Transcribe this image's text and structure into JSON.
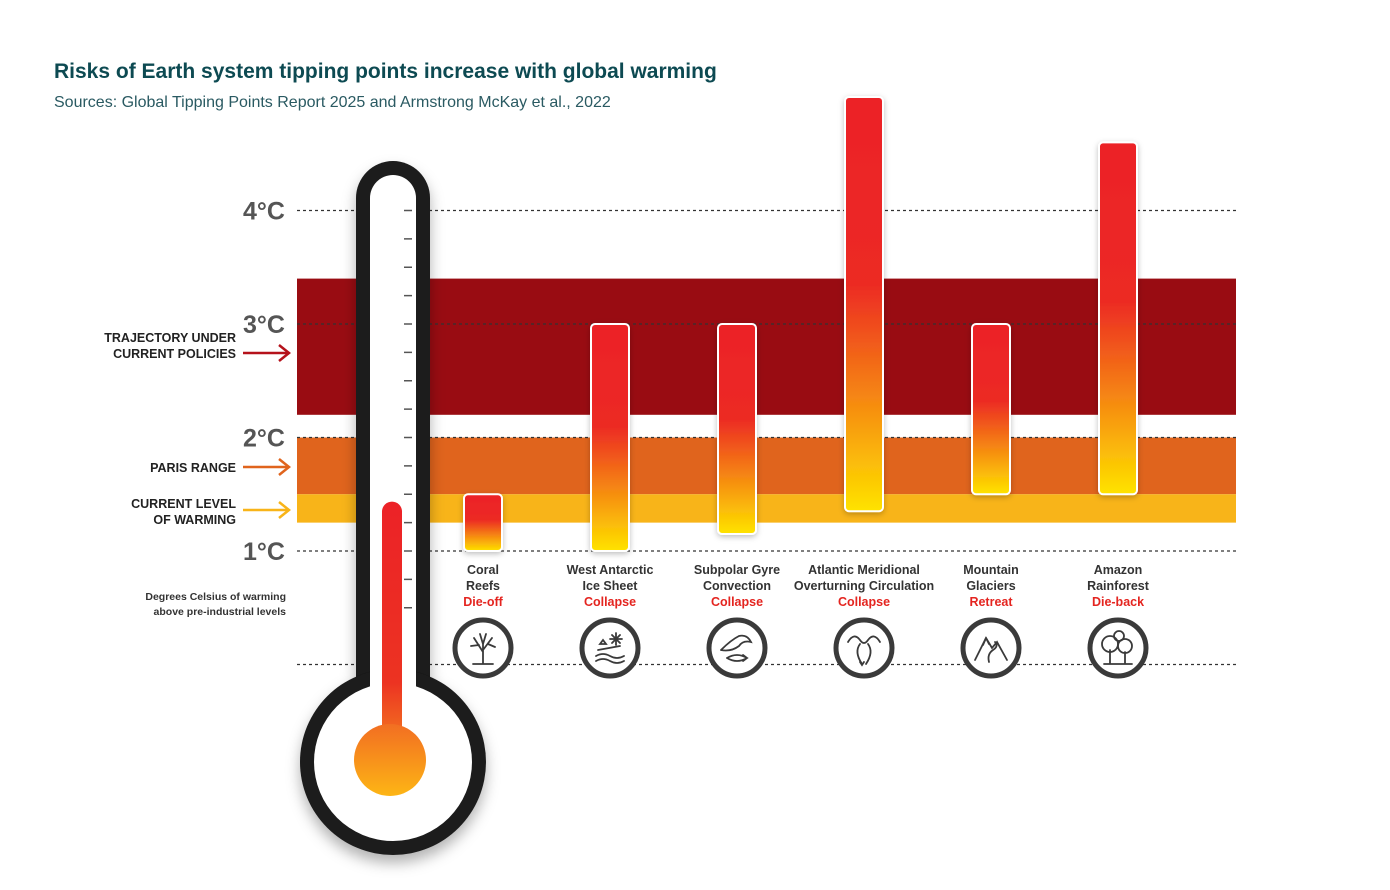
{
  "header": {
    "title": "Risks of Earth system tipping points increase with global warming",
    "subtitle": "Sources: Global Tipping Points Report 2025 and Armstrong McKay et al., 2022"
  },
  "annotations": {
    "trajectory": "TRAJECTORY UNDER CURRENT POLICIES",
    "paris": "PARIS RANGE",
    "current": "CURRENT LEVEL OF WARMING",
    "note": "Degrees Celsius of warming above pre-industrial levels"
  },
  "colors": {
    "trajectory_band": "#990c12",
    "paris_band": "#e0641d",
    "current_band": "#f8b419",
    "bar_top": "#ec2227",
    "bar_bottom": "#ffe300",
    "thermo_outline": "#1a1a1a",
    "title": "#0d4a52"
  },
  "chart_data": {
    "type": "bar",
    "subtype": "floating-range",
    "title": "Risks of Earth system tipping points increase with global warming",
    "ylabel": "Degrees Celsius of warming above pre-industrial levels",
    "y_ticks": [
      "1°C",
      "2°C",
      "3°C",
      "4°C"
    ],
    "y_tick_values": [
      1,
      2,
      3,
      4
    ],
    "ylim": [
      0,
      5
    ],
    "bands": [
      {
        "name": "TRAJECTORY UNDER CURRENT POLICIES",
        "from": 2.2,
        "to": 3.4
      },
      {
        "name": "PARIS RANGE",
        "from": 1.5,
        "to": 2.0
      },
      {
        "name": "CURRENT LEVEL OF WARMING",
        "from": 1.25,
        "to": 1.5
      }
    ],
    "current_warming": 1.4,
    "series": [
      {
        "name": "Coral Reefs",
        "impact": "Die-off",
        "low": 1.0,
        "high": 1.5,
        "icon": "coral-icon"
      },
      {
        "name": "West Antarctic Ice Sheet",
        "impact": "Collapse",
        "low": 1.0,
        "high": 3.0,
        "icon": "ice-sheet-icon"
      },
      {
        "name": "Subpolar Gyre Convection",
        "impact": "Collapse",
        "low": 1.15,
        "high": 3.0,
        "icon": "gyre-icon"
      },
      {
        "name": "Atlantic Meridional Overturning Circulation",
        "impact": "Collapse",
        "low": 1.35,
        "high": 5.0,
        "icon": "amoc-icon"
      },
      {
        "name": "Mountain Glaciers",
        "impact": "Retreat",
        "low": 1.5,
        "high": 3.0,
        "icon": "glacier-icon"
      },
      {
        "name": "Amazon Rainforest",
        "impact": "Die-back",
        "low": 1.5,
        "high": 4.6,
        "icon": "rainforest-icon"
      }
    ],
    "category_lines": [
      [
        "Coral",
        "Reefs"
      ],
      [
        "West Antarctic",
        "Ice Sheet"
      ],
      [
        "Subpolar Gyre",
        "Convection"
      ],
      [
        "Atlantic Meridional",
        "Overturning Circulation"
      ],
      [
        "Mountain",
        "Glaciers"
      ],
      [
        "Amazon",
        "Rainforest"
      ]
    ]
  }
}
